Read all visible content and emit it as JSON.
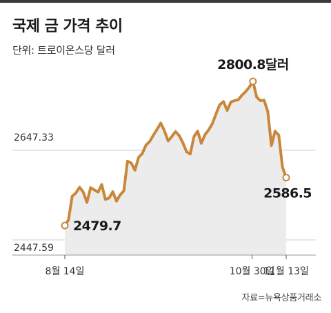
{
  "title": "국제 금 가격 추이",
  "unit_label": "단위: 트로이온스당 달러",
  "source": "자료=뉴욕상품거래소",
  "colors": {
    "line": "#c8873a",
    "area": "#ececec",
    "grid": "#cfcfcf",
    "marker_fill": "#ffffff"
  },
  "chart_data": {
    "type": "line",
    "title": "국제 금 가격 추이",
    "ylabel": "단위: 트로이온스당 달러",
    "ylim": [
      2447.59,
      2810
    ],
    "yticks": [
      {
        "value": 2447.59,
        "label": "2447.59"
      },
      {
        "value": 2647.33,
        "label": "2647.33"
      }
    ],
    "xticks": [
      {
        "index": 0,
        "label": "8월 14일"
      },
      {
        "index": 55,
        "label": "10월 30일"
      },
      {
        "index": 65,
        "label": "11월 13일"
      }
    ],
    "values": [
      2479.7,
      2492,
      2545,
      2552,
      2565,
      2554,
      2531,
      2564,
      2559,
      2554,
      2571,
      2538,
      2541,
      2555,
      2534,
      2548,
      2557,
      2623,
      2619,
      2603,
      2632,
      2640,
      2659,
      2667,
      2681,
      2694,
      2708,
      2691,
      2668,
      2678,
      2689,
      2680,
      2664,
      2644,
      2639,
      2678,
      2690,
      2663,
      2682,
      2693,
      2707,
      2729,
      2749,
      2756,
      2736,
      2755,
      2758,
      2760,
      2770,
      2778,
      2788,
      2800.8,
      2766,
      2758,
      2759,
      2734,
      2658,
      2690,
      2681,
      2610,
      2586.5
    ],
    "annotations": [
      {
        "index": 0,
        "text": "2479.7"
      },
      {
        "index": 51,
        "text": "2800.8달러"
      },
      {
        "index": 60,
        "text": "2586.5"
      }
    ]
  }
}
